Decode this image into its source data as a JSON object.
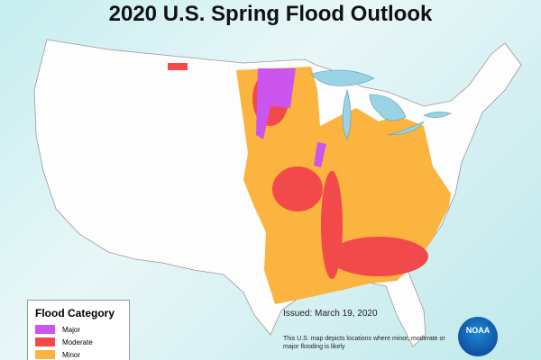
{
  "header": {
    "title": "2020 U.S. Spring Flood Outlook"
  },
  "legend": {
    "title": "Flood Category",
    "items": [
      {
        "label": "Major",
        "color": "#cc55ee"
      },
      {
        "label": "Moderate",
        "color": "#f24a4a"
      },
      {
        "label": "Minor",
        "color": "#fbb43f"
      }
    ]
  },
  "issued": "Issued:  March 19, 2020",
  "note": "This U.S. map depicts locations where minor, moderate or major flooding is likely",
  "logo": "NOAA"
}
